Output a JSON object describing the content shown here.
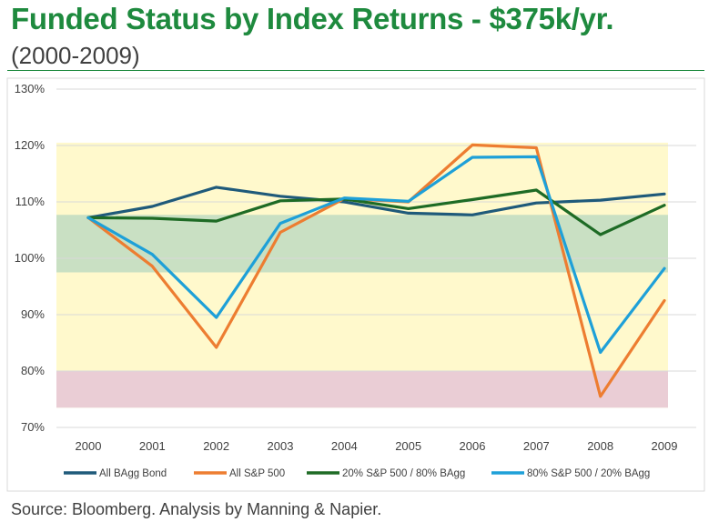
{
  "header": {
    "title": "Funded Status by Index Returns - $375k/yr.",
    "subtitle": "(2000-2009)"
  },
  "chart_data": {
    "type": "line",
    "categories": [
      "2000",
      "2001",
      "2002",
      "2003",
      "2004",
      "2005",
      "2006",
      "2007",
      "2008",
      "2009"
    ],
    "ylim": [
      70,
      130
    ],
    "yticks": [
      70,
      80,
      90,
      100,
      110,
      120,
      130
    ],
    "ytick_labels": [
      "70%",
      "80%",
      "90%",
      "100%",
      "110%",
      "120%",
      "130%"
    ],
    "grid": true,
    "legend_position": "bottom",
    "bands": [
      {
        "from": 73.5,
        "to": 120.5,
        "color": "#fff9cc"
      },
      {
        "from": 97.5,
        "to": 107.7,
        "color": "#c9e0c3"
      },
      {
        "from": 73.5,
        "to": 80.0,
        "color": "#eacdd5"
      }
    ],
    "series": [
      {
        "name": "All BAgg Bond",
        "color": "#1f5a7a",
        "values": [
          107.2,
          109.2,
          112.6,
          111.0,
          110.0,
          108.0,
          107.7,
          109.8,
          110.3,
          111.4
        ]
      },
      {
        "name": "All S&P 500",
        "color": "#ed7d31",
        "values": [
          107.2,
          98.6,
          84.2,
          104.6,
          110.6,
          110.0,
          120.1,
          119.6,
          75.5,
          92.5
        ]
      },
      {
        "name": "20% S&P 500 / 80% BAgg",
        "color": "#1e6b25",
        "values": [
          107.2,
          107.1,
          106.6,
          110.2,
          110.5,
          108.8,
          110.4,
          112.1,
          104.2,
          109.4
        ]
      },
      {
        "name": "80% S&P 500 / 20% BAgg",
        "color": "#1ea0d8",
        "values": [
          107.2,
          100.7,
          89.5,
          106.2,
          110.7,
          110.1,
          117.9,
          118.0,
          83.3,
          98.2
        ]
      }
    ]
  },
  "footer": {
    "source": "Source: Bloomberg. Analysis by Manning & Napier."
  }
}
